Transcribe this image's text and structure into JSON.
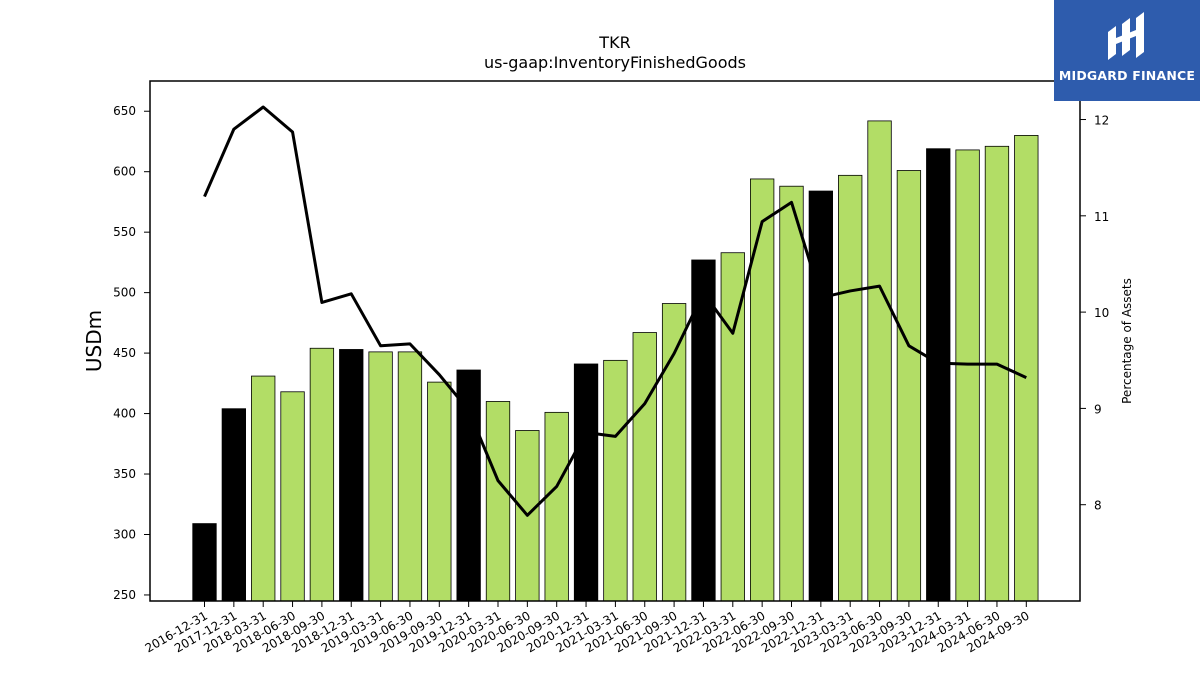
{
  "chart_data": {
    "type": "bar",
    "title": "TKR",
    "subtitle": "us-gaap:InventoryFinishedGoods",
    "ylabel": "USDm",
    "y2label": "Percentage of Assets",
    "ylim": [
      245,
      675
    ],
    "y2lim": [
      7.0,
      12.4
    ],
    "yticks": [
      250,
      300,
      350,
      400,
      450,
      500,
      550,
      600,
      650
    ],
    "y2ticks": [
      8,
      9,
      10,
      11,
      12
    ],
    "categories": [
      "2016-12-31",
      "2017-12-31",
      "2018-03-31",
      "2018-06-30",
      "2018-09-30",
      "2018-12-31",
      "2019-03-31",
      "2019-06-30",
      "2019-09-30",
      "2019-12-31",
      "2020-03-31",
      "2020-06-30",
      "2020-09-30",
      "2020-12-31",
      "2021-03-31",
      "2021-06-30",
      "2021-09-30",
      "2021-12-31",
      "2022-03-31",
      "2022-06-30",
      "2022-09-30",
      "2022-12-31",
      "2023-03-31",
      "2023-06-30",
      "2023-09-30",
      "2023-12-31",
      "2024-03-31",
      "2024-06-30",
      "2024-09-30"
    ],
    "series": [
      {
        "type": "bar",
        "values": [
          309,
          404,
          431,
          418,
          454,
          453,
          451,
          451,
          426,
          436,
          410,
          386,
          401,
          441,
          444,
          467,
          491,
          527,
          533,
          594,
          588,
          584,
          597,
          642,
          601,
          619,
          618,
          621,
          630
        ],
        "annual_flags": [
          true,
          true,
          false,
          false,
          false,
          true,
          false,
          false,
          false,
          true,
          false,
          false,
          false,
          true,
          false,
          false,
          false,
          true,
          false,
          false,
          false,
          true,
          false,
          false,
          false,
          true,
          false,
          false,
          false
        ]
      },
      {
        "type": "line",
        "axis": "right",
        "values": [
          11.2,
          11.9,
          12.13,
          11.87,
          10.1,
          10.19,
          9.65,
          9.67,
          9.35,
          8.98,
          8.25,
          7.89,
          8.19,
          8.75,
          8.71,
          9.05,
          9.57,
          10.2,
          9.78,
          10.94,
          11.14,
          10.15,
          10.22,
          10.27,
          9.65,
          9.47,
          9.46,
          9.46,
          9.32
        ]
      }
    ],
    "colors": {
      "annual_bar": "#000000",
      "quarter_bar": "#b2dd66",
      "line": "#000000"
    },
    "grid": false,
    "legend": "none"
  },
  "logo": {
    "text": "MIDGARD FINANCE",
    "background": "#2e5cad",
    "icon": "midgard-logo-icon"
  }
}
